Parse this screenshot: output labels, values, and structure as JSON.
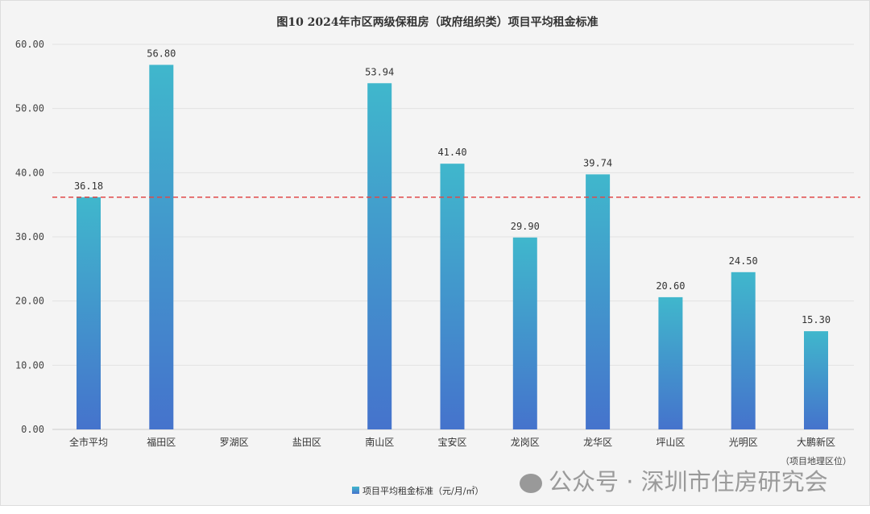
{
  "chart_data": {
    "type": "bar",
    "title": "图10 2024年市区两级保租房（政府组织类）项目平均租金标准",
    "categories": [
      "全市平均",
      "福田区",
      "罗湖区",
      "盐田区",
      "南山区",
      "宝安区",
      "龙岗区",
      "龙华区",
      "坪山区",
      "光明区",
      "大鹏新区"
    ],
    "category_note": "（项目地理区位）",
    "values": [
      36.18,
      56.8,
      null,
      null,
      53.94,
      41.4,
      29.9,
      39.74,
      20.6,
      24.5,
      15.3
    ],
    "value_labels": [
      "36.18",
      "56.80",
      "",
      "",
      "53.94",
      "41.40",
      "29.90",
      "39.74",
      "20.60",
      "24.50",
      "15.30"
    ],
    "yticks": [
      "0.00",
      "10.00",
      "20.00",
      "30.00",
      "40.00",
      "50.00",
      "60.00"
    ],
    "ylim": [
      0,
      60
    ],
    "reference_line": {
      "value": 36.18,
      "style": "dashed",
      "color": "#e04848"
    },
    "legend": {
      "label": "项目平均租金标准（元/月/㎡）",
      "position": "bottom"
    },
    "grid": true,
    "colors": {
      "bar_top": "#40b7cc",
      "bar_bottom": "#4573cc"
    }
  },
  "watermark": "公众号 · 深圳市住房研究会"
}
